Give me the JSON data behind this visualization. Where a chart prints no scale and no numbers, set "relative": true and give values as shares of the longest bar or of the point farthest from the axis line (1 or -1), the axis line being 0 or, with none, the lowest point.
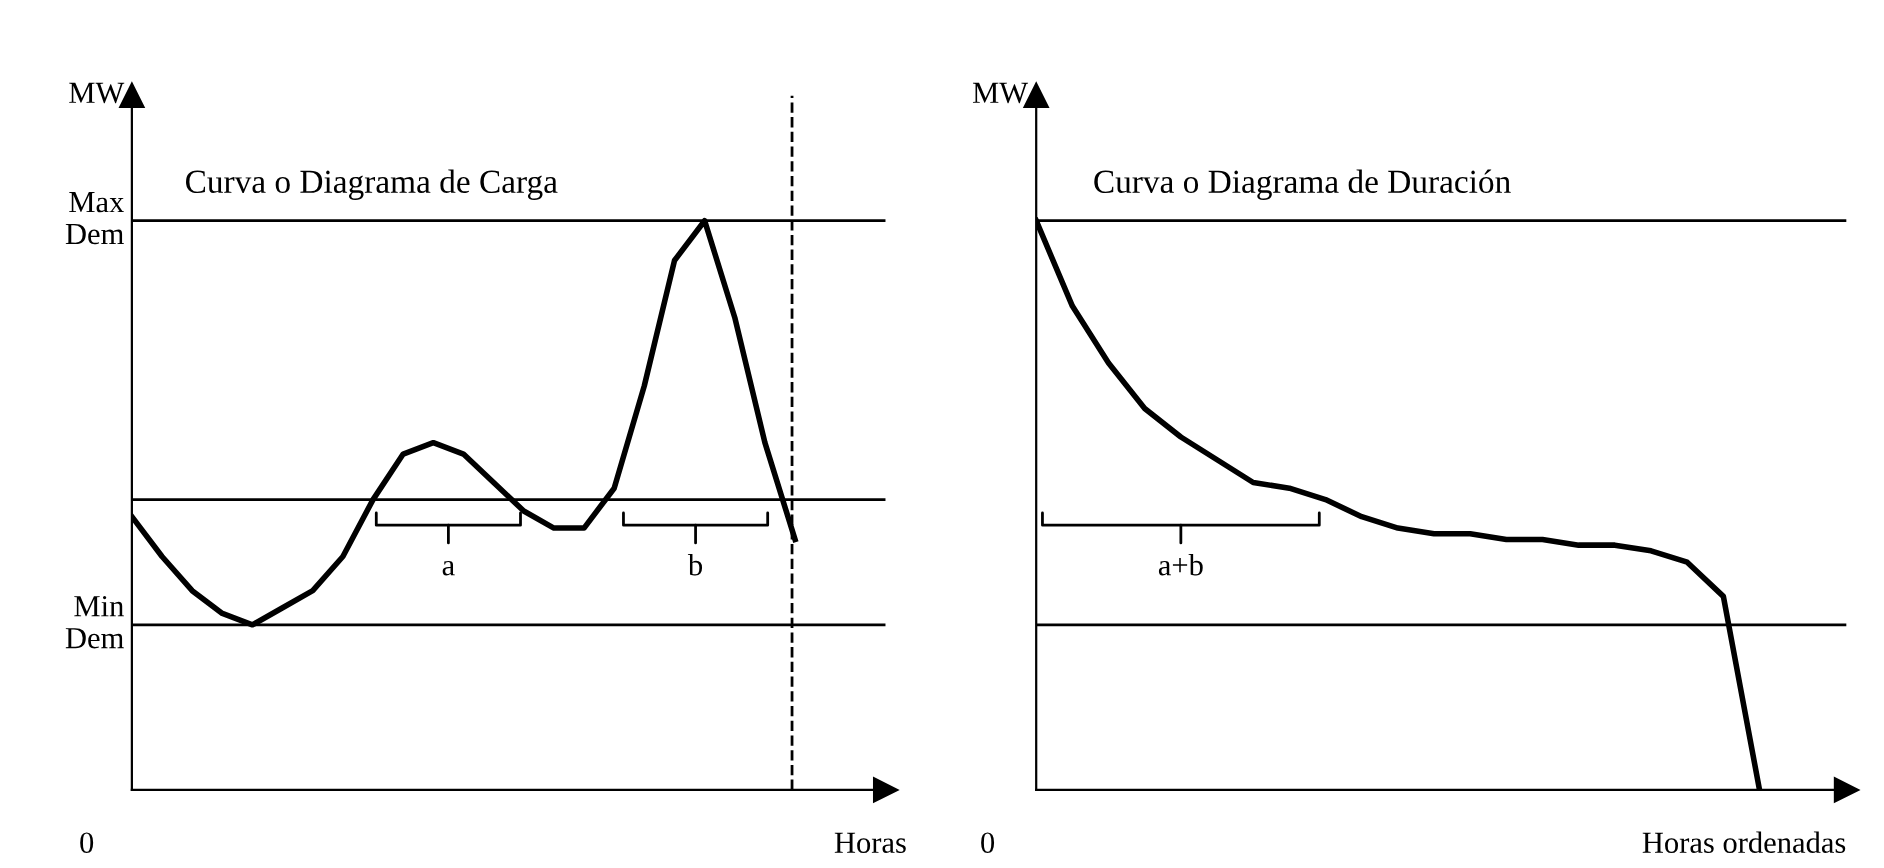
{
  "chart_data": [
    {
      "type": "line",
      "title": "Curva o Diagrama de Carga",
      "ylabel": "MW",
      "xlabel": "Horas",
      "relative": true,
      "legend": false,
      "marker": "none",
      "line_style": "solid",
      "categories": [
        null,
        null,
        null,
        null,
        null,
        null,
        null,
        null,
        null,
        null,
        null,
        null,
        null,
        null,
        null,
        null,
        null,
        null,
        null,
        null,
        null,
        null,
        null
      ],
      "series": [
        {
          "color": "#000000",
          "values": [
            0.48,
            0.41,
            0.35,
            0.31,
            0.29,
            0.32,
            0.35,
            0.41,
            0.51,
            0.59,
            0.61,
            0.59,
            0.54,
            0.49,
            0.46,
            0.46,
            0.53,
            0.71,
            0.93,
            1,
            0.83,
            0.61,
            0.44
          ]
        }
      ],
      "ref_lines": [
        {
          "axis": "y",
          "value": 1,
          "label": "Max\nDem"
        },
        {
          "axis": "y",
          "value": 0.51,
          "label": null
        },
        {
          "axis": "y",
          "value": 0.29,
          "label": "Min\nDem"
        }
      ],
      "annotations": [
        "0",
        "a",
        "b"
      ]
    },
    {
      "type": "line",
      "title": "Curva o Diagrama de Duración",
      "ylabel": "MW",
      "xlabel": "Horas ordenadas",
      "relative": true,
      "legend": false,
      "marker": "none",
      "line_style": "solid",
      "categories": [
        null,
        null,
        null,
        null,
        null,
        null,
        null,
        null,
        null,
        null,
        null,
        null,
        null,
        null,
        null,
        null,
        null,
        null,
        null,
        null,
        null
      ],
      "series": [
        {
          "color": "#000000",
          "values": [
            1,
            0.85,
            0.75,
            0.67,
            0.62,
            0.58,
            0.54,
            0.53,
            0.51,
            0.48,
            0.46,
            0.45,
            0.45,
            0.44,
            0.44,
            0.43,
            0.43,
            0.42,
            0.4,
            0.34,
            0
          ]
        }
      ],
      "ref_lines": [
        {
          "axis": "y",
          "value": 1,
          "label": null
        },
        {
          "axis": "y",
          "value": 0.29,
          "label": null
        }
      ],
      "annotations": [
        "0",
        "a+b"
      ]
    }
  ]
}
